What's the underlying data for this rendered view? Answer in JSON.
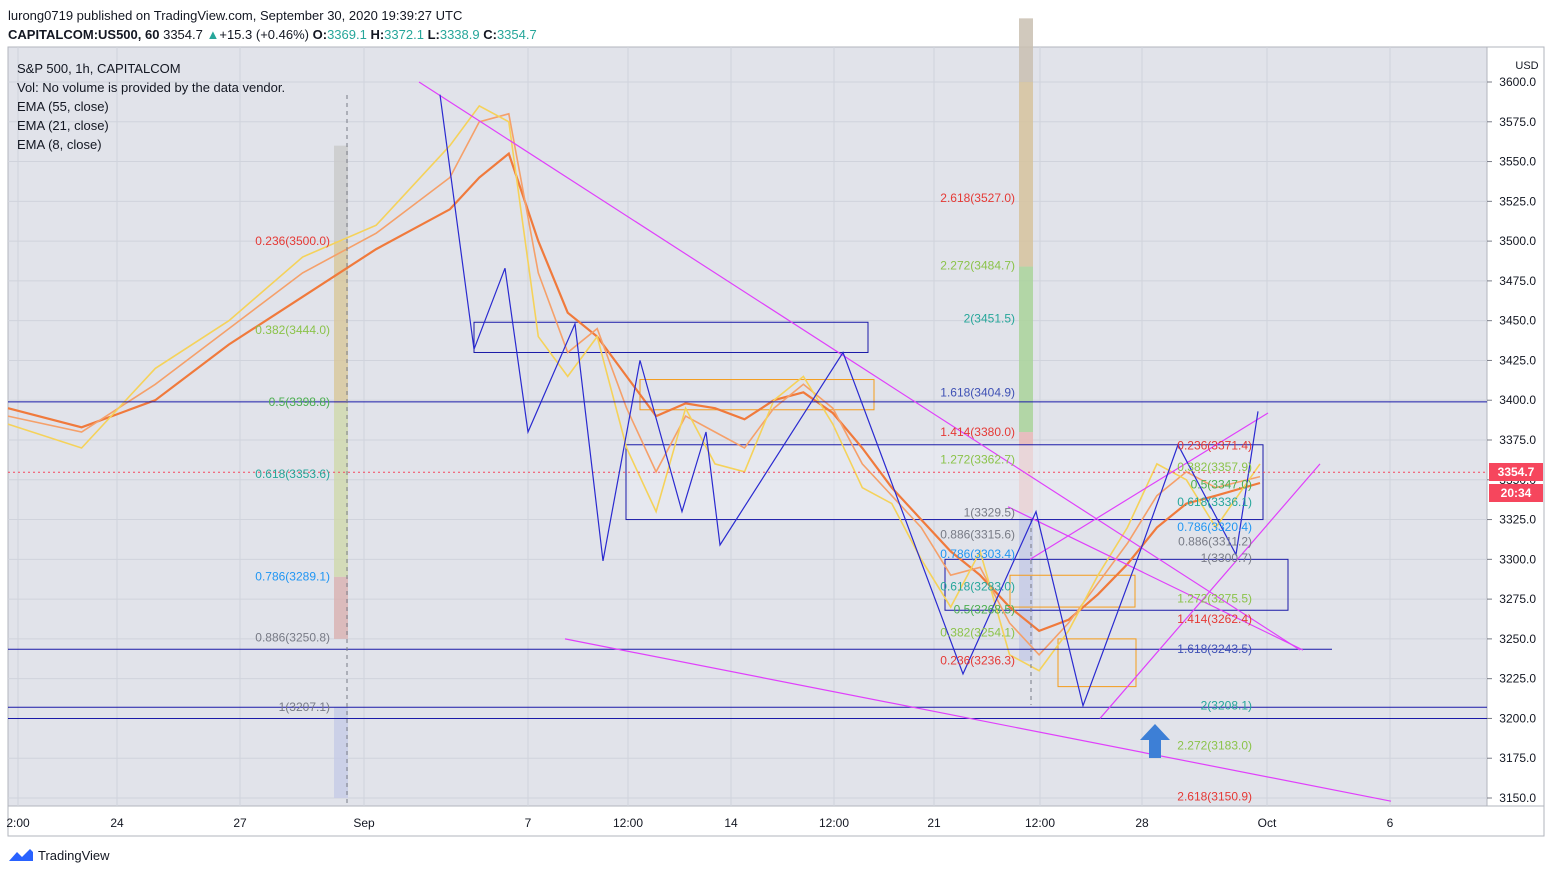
{
  "header": {
    "line1": "lurong0719 published on TradingView.com, September 30, 2020 19:39:27 UTC",
    "symbol": "CAPITALCOM:US500, 60",
    "last": "3354.7",
    "change": "+15.3 (+0.46%)",
    "o_label": "O:",
    "o": "3369.1",
    "h_label": "H:",
    "h": "3372.1",
    "l_label": "L:",
    "l": "3338.9",
    "c_label": "C:",
    "c": "3354.7"
  },
  "legend": {
    "title": "S&P 500, 1h, CAPITALCOM",
    "vol": "Vol: No volume is provided by the data vendor.",
    "ema55": "EMA (55, close)",
    "ema21": "EMA (21, close)",
    "ema8": "EMA (8, close)"
  },
  "axis": {
    "currency": "USD",
    "y_ticks": [
      "3600.0",
      "3575.0",
      "3550.0",
      "3525.0",
      "3500.0",
      "3475.0",
      "3450.0",
      "3425.0",
      "3400.0",
      "3375.0",
      "3350.0",
      "3325.0",
      "3300.0",
      "3275.0",
      "3250.0",
      "3225.0",
      "3200.0",
      "3175.0",
      "3150.0"
    ],
    "x_ticks": [
      "2:00",
      "24",
      "27",
      "Sep",
      "7",
      "12:00",
      "14",
      "12:00",
      "21",
      "12:00",
      "28",
      "Oct",
      "6"
    ],
    "ylim": [
      3142,
      3615
    ]
  },
  "price_tag": {
    "value": "3354.7",
    "time": "20:34"
  },
  "footer": {
    "brand": "TradingView"
  },
  "fib_labels": [
    {
      "text": "0.236(3500.0)",
      "color": "#e53935"
    },
    {
      "text": "0.382(3444.0)",
      "color": "#8bc34a"
    },
    {
      "text": "0.5(3398.8)",
      "color": "#4caf50"
    },
    {
      "text": "0.618(3353.6)",
      "color": "#26a69a"
    },
    {
      "text": "0.786(3289.1)",
      "color": "#2196f3"
    },
    {
      "text": "0.886(3250.8)",
      "color": "#787b86"
    },
    {
      "text": "1(3207.1)",
      "color": "#787b86"
    },
    {
      "text": "2.618(3527.0)",
      "color": "#e53935"
    },
    {
      "text": "2.272(3484.7)",
      "color": "#8bc34a"
    },
    {
      "text": "2(3451.5)",
      "color": "#26a69a"
    },
    {
      "text": "1.618(3404.9)",
      "color": "#3f51b5"
    },
    {
      "text": "1.414(3380.0)",
      "color": "#e53935"
    },
    {
      "text": "1.272(3362.7)",
      "color": "#8bc34a"
    },
    {
      "text": "1(3329.5)",
      "color": "#787b86"
    },
    {
      "text": "0.886(3315.6)",
      "color": "#787b86"
    },
    {
      "text": "0.786(3303.4)",
      "color": "#2196f3"
    },
    {
      "text": "0.618(3283.0)",
      "color": "#26a69a"
    },
    {
      "text": "0.5(3268.5)",
      "color": "#4caf50"
    },
    {
      "text": "0.382(3254.1)",
      "color": "#8bc34a"
    },
    {
      "text": "0.236(3236.3)",
      "color": "#e53935"
    },
    {
      "text": "0.236(3371.4)",
      "color": "#e53935"
    },
    {
      "text": "0.382(3357.9)",
      "color": "#8bc34a"
    },
    {
      "text": "0.5(3347.0)",
      "color": "#4caf50"
    },
    {
      "text": "0.618(3336.1)",
      "color": "#26a69a"
    },
    {
      "text": "0.786(3320.4)",
      "color": "#2196f3"
    },
    {
      "text": "0.886(3311.2)",
      "color": "#787b86"
    },
    {
      "text": "1(3300.7)",
      "color": "#787b86"
    },
    {
      "text": "1.272(3275.5)",
      "color": "#8bc34a"
    },
    {
      "text": "1.414(3262.4)",
      "color": "#e53935"
    },
    {
      "text": "1.618(3243.5)",
      "color": "#3f51b5"
    },
    {
      "text": "2(3208.1)",
      "color": "#26a69a"
    },
    {
      "text": "2.272(3183.0)",
      "color": "#8bc34a"
    },
    {
      "text": "2.618(3150.9)",
      "color": "#e53935"
    }
  ],
  "chart_data": {
    "type": "line",
    "title": "S&P 500, 1h, CAPITALCOM",
    "ylabel": "USD",
    "ylim": [
      3142,
      3615
    ],
    "x_ticks": [
      "2:00",
      "24",
      "27",
      "Sep",
      "7",
      "12:00",
      "14",
      "12:00",
      "21",
      "12:00",
      "28",
      "Oct",
      "6"
    ],
    "series": [
      {
        "name": "EMA (55, close)",
        "color": "#f07a3c",
        "x": [
          0,
          0.05,
          0.1,
          0.15,
          0.2,
          0.25,
          0.3,
          0.32,
          0.34,
          0.36,
          0.38,
          0.4,
          0.42,
          0.44,
          0.46,
          0.48,
          0.5,
          0.52,
          0.54,
          0.56,
          0.58,
          0.6,
          0.62,
          0.64,
          0.66,
          0.68,
          0.7,
          0.72,
          0.74,
          0.76,
          0.78,
          0.8,
          0.82,
          0.85
        ],
        "values": [
          3395,
          3383,
          3400,
          3435,
          3465,
          3495,
          3520,
          3540,
          3555,
          3500,
          3455,
          3440,
          3415,
          3390,
          3398,
          3395,
          3388,
          3400,
          3405,
          3392,
          3370,
          3345,
          3325,
          3305,
          3290,
          3270,
          3255,
          3262,
          3278,
          3297,
          3320,
          3335,
          3340,
          3348
        ]
      },
      {
        "name": "EMA (21, close)",
        "color": "#f5a06a",
        "x": [
          0,
          0.05,
          0.1,
          0.15,
          0.2,
          0.25,
          0.3,
          0.32,
          0.34,
          0.36,
          0.38,
          0.4,
          0.42,
          0.44,
          0.46,
          0.48,
          0.5,
          0.52,
          0.54,
          0.56,
          0.58,
          0.6,
          0.62,
          0.64,
          0.66,
          0.68,
          0.7,
          0.72,
          0.74,
          0.76,
          0.78,
          0.8,
          0.82,
          0.85
        ],
        "values": [
          3390,
          3380,
          3410,
          3445,
          3480,
          3505,
          3540,
          3575,
          3580,
          3480,
          3430,
          3445,
          3395,
          3355,
          3390,
          3380,
          3370,
          3395,
          3410,
          3395,
          3360,
          3340,
          3320,
          3290,
          3295,
          3260,
          3240,
          3260,
          3285,
          3310,
          3340,
          3355,
          3345,
          3352
        ]
      },
      {
        "name": "EMA (8, close)",
        "color": "#f5d25a",
        "x": [
          0,
          0.05,
          0.1,
          0.15,
          0.2,
          0.25,
          0.3,
          0.32,
          0.34,
          0.36,
          0.38,
          0.4,
          0.42,
          0.44,
          0.46,
          0.48,
          0.5,
          0.52,
          0.54,
          0.56,
          0.58,
          0.6,
          0.62,
          0.64,
          0.66,
          0.68,
          0.7,
          0.72,
          0.74,
          0.76,
          0.78,
          0.8,
          0.82,
          0.85
        ],
        "values": [
          3385,
          3370,
          3420,
          3450,
          3490,
          3510,
          3560,
          3585,
          3575,
          3440,
          3415,
          3440,
          3370,
          3330,
          3395,
          3360,
          3355,
          3400,
          3415,
          3385,
          3345,
          3335,
          3300,
          3270,
          3305,
          3240,
          3230,
          3255,
          3290,
          3320,
          3360,
          3350,
          3320,
          3360
        ]
      }
    ]
  }
}
